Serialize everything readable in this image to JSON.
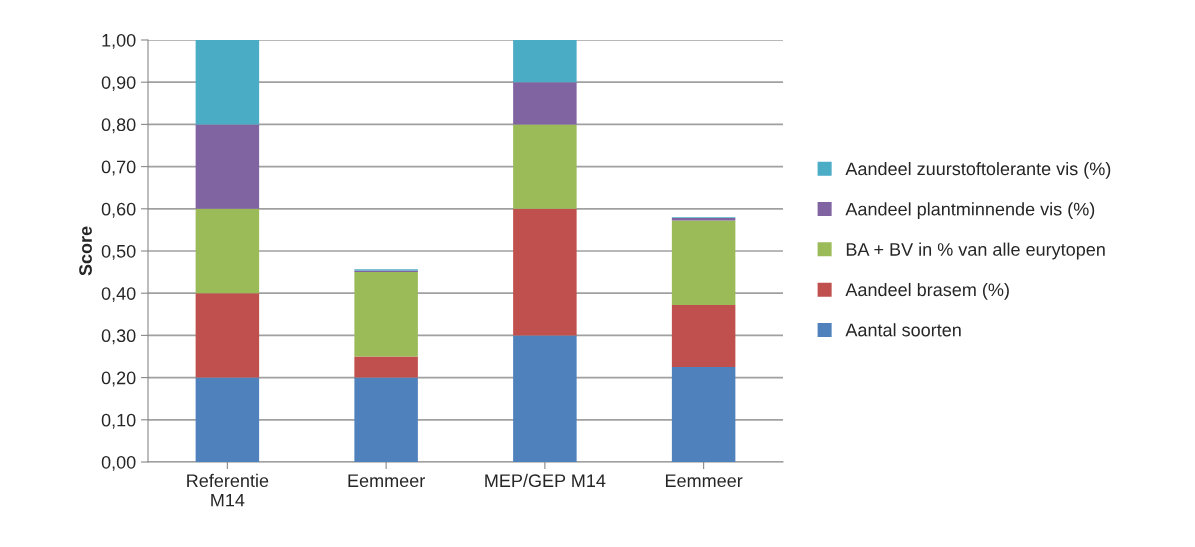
{
  "chart_data": {
    "type": "bar",
    "stacked": true,
    "ylabel": "Score",
    "categories": [
      "Referentie\nM14",
      "Eemmeer",
      "MEP/GEP M14",
      "Eemmeer"
    ],
    "series": [
      {
        "name": "Aantal soorten",
        "color": "#4f81bd",
        "values": [
          0.2,
          0.2,
          0.3,
          0.225
        ]
      },
      {
        "name": "Aandeel brasem (%)",
        "color": "#c0504d",
        "values": [
          0.2,
          0.05,
          0.3,
          0.147
        ]
      },
      {
        "name": "BA + BV in % van alle eurytopen",
        "color": "#9bbb59",
        "values": [
          0.2,
          0.2,
          0.2,
          0.2
        ]
      },
      {
        "name": "Aandeel plantminnende vis (%)",
        "color": "#8064a2",
        "values": [
          0.2,
          0.004,
          0.1,
          0.006
        ]
      },
      {
        "name": "Aandeel zuurstoftolerante vis (%)",
        "color": "#4bacc6",
        "values": [
          0.2,
          0.003,
          0.1,
          0.002
        ]
      }
    ],
    "ylim": [
      0,
      1
    ],
    "yticks": [
      {
        "value": 0,
        "label": "0,00"
      },
      {
        "value": 0.1,
        "label": "0,10"
      },
      {
        "value": 0.2,
        "label": "0,20"
      },
      {
        "value": 0.3,
        "label": "0,30"
      },
      {
        "value": 0.4,
        "label": "0,40"
      },
      {
        "value": 0.5,
        "label": "0,50"
      },
      {
        "value": 0.6,
        "label": "0,60"
      },
      {
        "value": 0.7,
        "label": "0,70"
      },
      {
        "value": 0.8,
        "label": "0,80"
      },
      {
        "value": 0.9,
        "label": "0,90"
      },
      {
        "value": 1,
        "label": "1,00"
      }
    ],
    "grid": "y",
    "legend": "right"
  }
}
